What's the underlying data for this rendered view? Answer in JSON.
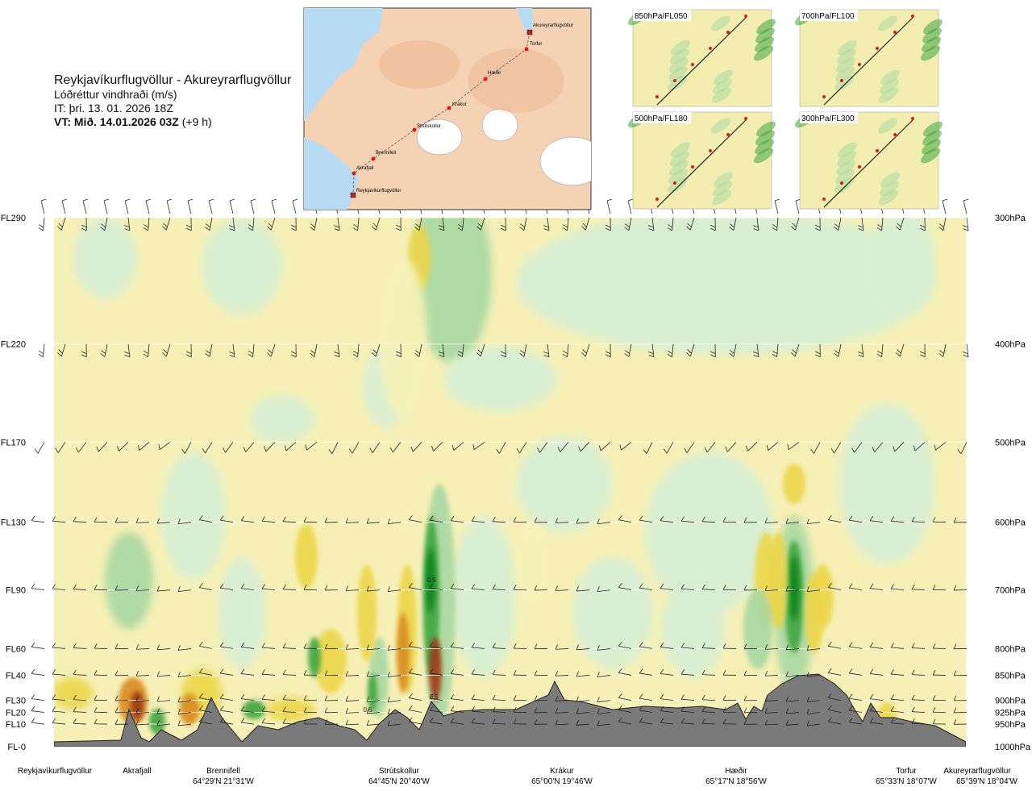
{
  "header": {
    "route": "Reykjavíkurflugvöllur - Akureyrarflugvöllur",
    "parameter": "Lóðréttur vindhraði (m/s)",
    "issue_time": "IT: þri. 13. 01. 2026 18Z",
    "valid_time": "VT: Mið. 14.01.2026 03Z",
    "lead_time": "(+9 h)"
  },
  "insets": [
    {
      "label": "850hPa/FL050"
    },
    {
      "label": "700hPa/FL100"
    },
    {
      "label": "500hPa/FL180"
    },
    {
      "label": "300hPa/FL300"
    }
  ],
  "route_map": {
    "waypoints": [
      "Akureyrarflugvöllur",
      "Torfur",
      "Hæðir",
      "Krákur",
      "Strútskollur",
      "Brennifell",
      "Akrafjall",
      "Reykjavíkurflugvöllur"
    ]
  },
  "chart_data": {
    "type": "heatmap",
    "title": "Lóðréttur vindhraði (m/s)",
    "flight_levels": [
      {
        "fl": "FL290",
        "pressure": "300hPa"
      },
      {
        "fl": "FL220",
        "pressure": "400hPa"
      },
      {
        "fl": "FL170",
        "pressure": "500hPa"
      },
      {
        "fl": "FL130",
        "pressure": "600hPa"
      },
      {
        "fl": "FL90",
        "pressure": "700hPa"
      },
      {
        "fl": "FL60",
        "pressure": "800hPa"
      },
      {
        "fl": "FL40",
        "pressure": "850hPa"
      },
      {
        "fl": "FL30",
        "pressure": "900hPa"
      },
      {
        "fl": "FL20",
        "pressure": "925hPa"
      },
      {
        "fl": "FL10",
        "pressure": "950hPa"
      },
      {
        "fl": "FL-0",
        "pressure": "1000hPa"
      }
    ],
    "pressure_range_hpa": [
      300,
      1000
    ],
    "waypoints": [
      {
        "name": "Reykjavíkurflugvöllur",
        "coord": ""
      },
      {
        "name": "Akrafjall",
        "coord": ""
      },
      {
        "name": "Brennifell",
        "coord": "64°29'N 21°31'W"
      },
      {
        "name": "Strútskollur",
        "coord": "64°45'N 20°40'W"
      },
      {
        "name": "Krákur",
        "coord": "65°00'N 19°46'W"
      },
      {
        "name": "Hæðir",
        "coord": "65°17'N 18°56'W"
      },
      {
        "name": "Torfur",
        "coord": "65°33'N 18°07'W"
      },
      {
        "name": "Akureyrarflugvöllur",
        "coord": "65°39'N 18°04'W"
      }
    ],
    "contour_labels": [
      "0.5",
      "0.5",
      "0.5"
    ],
    "colors": {
      "weak_up": "#d8efd4",
      "mod_up": "#a9d8a2",
      "strong_up": "#3fa63f",
      "max_up": "#08841c",
      "weak_down": "#f7f2b8",
      "mod_down": "#ecd64a",
      "strong_down": "#d98c22",
      "max_down": "#9c3a12",
      "terrain": "#7a7a7a",
      "water": "#b7dbf2",
      "land": "#f5c9a4"
    },
    "grid": true
  }
}
